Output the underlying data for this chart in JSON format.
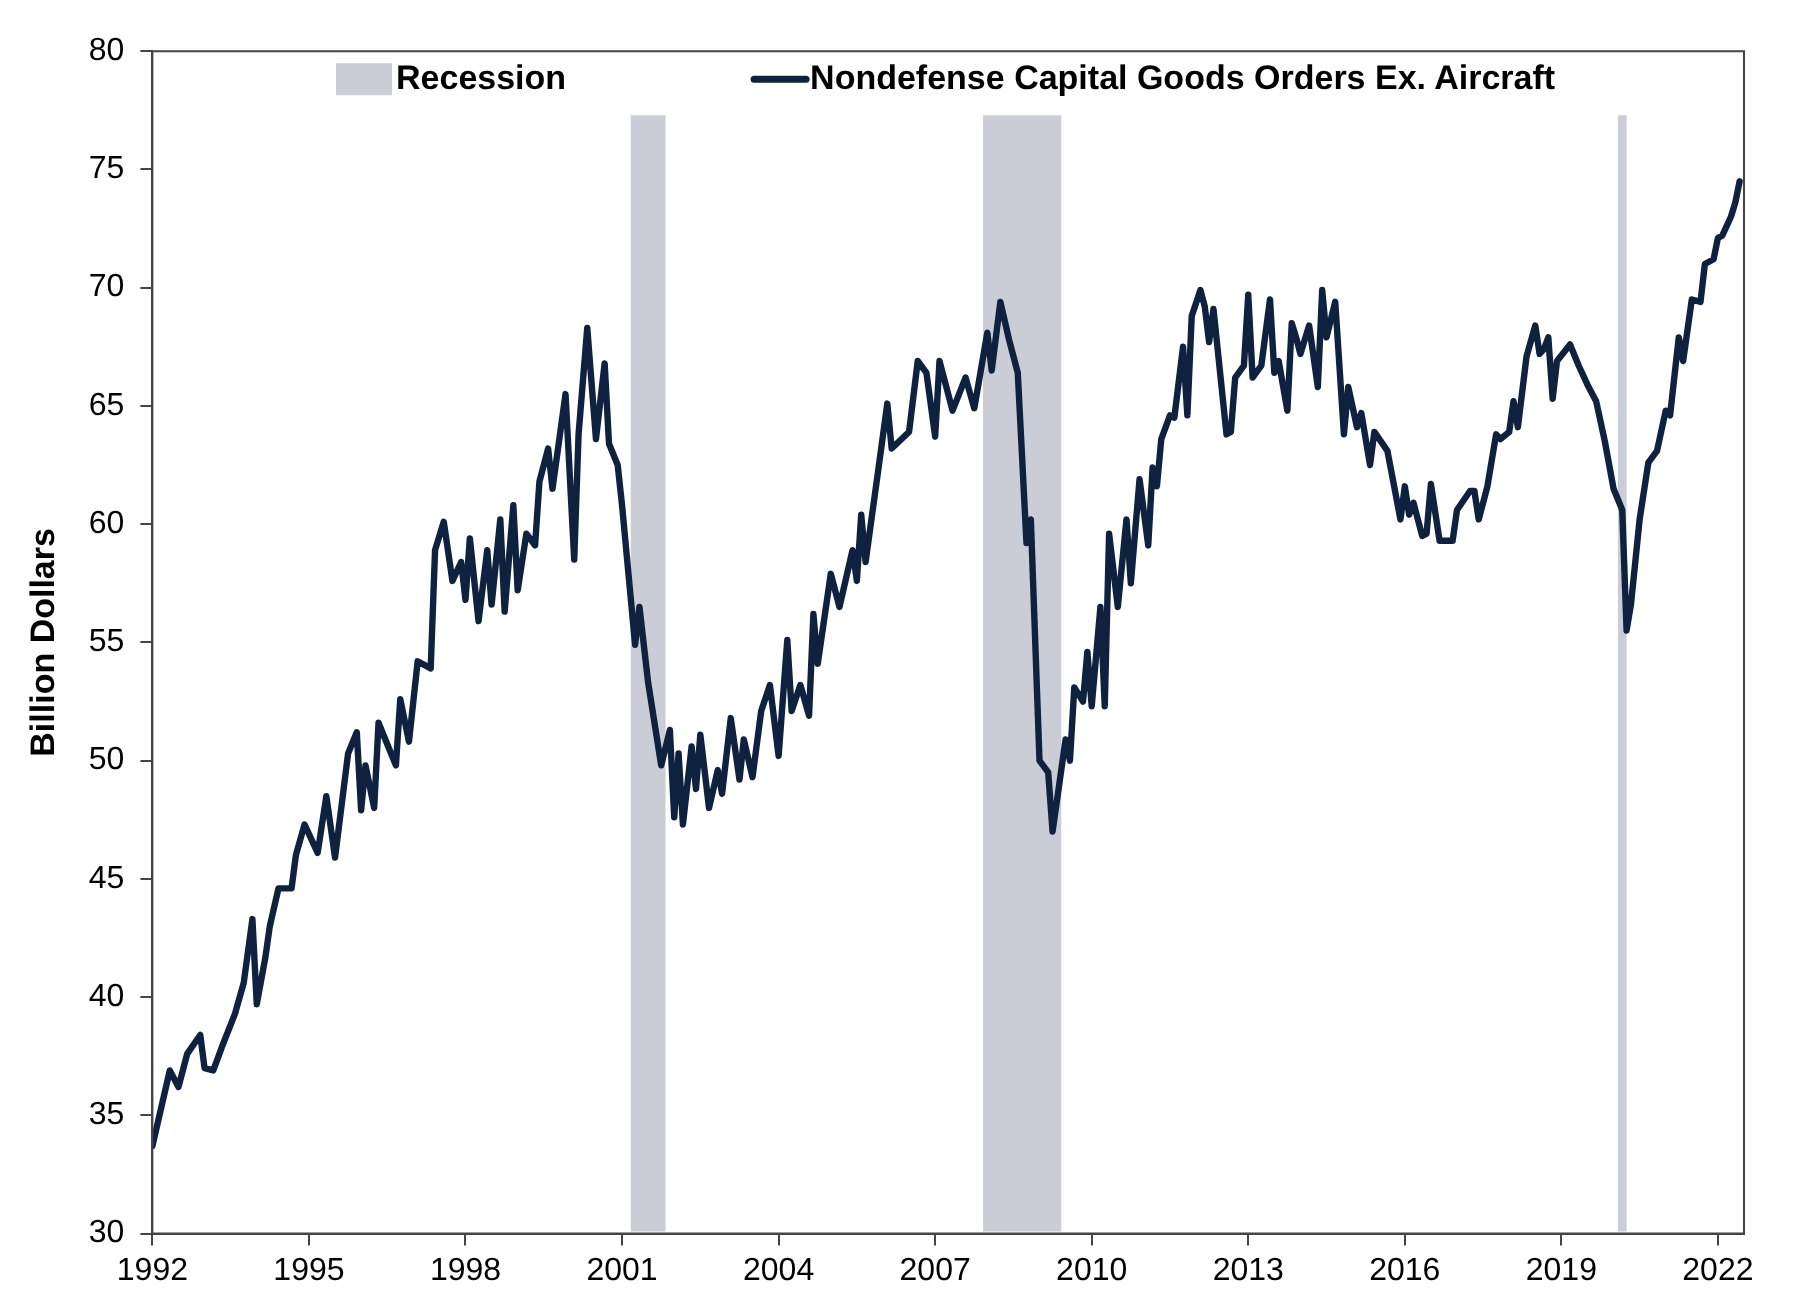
{
  "chart_data": {
    "type": "line",
    "ylabel": "Billion Dollars",
    "xlim": [
      "1992-01",
      "2022-07"
    ],
    "xticks": [
      "1992",
      "1995",
      "1998",
      "2001",
      "2004",
      "2007",
      "2010",
      "2013",
      "2016",
      "2019",
      "2022"
    ],
    "ylim": [
      30,
      80
    ],
    "yticks": [
      30,
      35,
      40,
      45,
      50,
      55,
      60,
      65,
      70,
      75,
      80
    ],
    "grid": false,
    "legend": "top",
    "marker": "none",
    "line_style": "solid",
    "bands": [
      {
        "axis": "x",
        "from": "2001-03",
        "to": "2001-11",
        "label": "Recession",
        "color": "#cbcdd6"
      },
      {
        "axis": "x",
        "from": "2007-12",
        "to": "2009-06",
        "color": "#cbcdd6"
      },
      {
        "axis": "x",
        "from": "2020-02",
        "to": "2020-04",
        "color": "#cbcdd6"
      }
    ],
    "series": [
      {
        "name": "Nondefense Capital Goods Orders Ex. Aircraft",
        "color": "#0e2240",
        "x": [
          "1992-01",
          "1992-05",
          "1992-07",
          "1992-09",
          "1992-12",
          "1993-01",
          "1993-03",
          "1993-05",
          "1993-08",
          "1993-10",
          "1993-12",
          "1994-01",
          "1994-03",
          "1994-04",
          "1994-06",
          "1994-09",
          "1994-10",
          "1994-12",
          "1995-03",
          "1995-05",
          "1995-07",
          "1995-10",
          "1995-12",
          "1996-01",
          "1996-02",
          "1996-04",
          "1996-05",
          "1996-09",
          "1996-10",
          "1996-12",
          "1997-02",
          "1997-05",
          "1997-06",
          "1997-08",
          "1997-10",
          "1997-12",
          "1998-01",
          "1998-02",
          "1998-04",
          "1998-06",
          "1998-07",
          "1998-09",
          "1998-10",
          "1998-12",
          "1999-01",
          "1999-03",
          "1999-05",
          "1999-06",
          "1999-08",
          "1999-09",
          "1999-12",
          "2000-02",
          "2000-03",
          "2000-05",
          "2000-07",
          "2000-09",
          "2000-10",
          "2000-12",
          "2001-01",
          "2001-04",
          "2001-05",
          "2001-07",
          "2001-10",
          "2001-12",
          "2002-01",
          "2002-02",
          "2002-03",
          "2002-05",
          "2002-06",
          "2002-07",
          "2002-09",
          "2002-11",
          "2002-12",
          "2003-02",
          "2003-04",
          "2003-05",
          "2003-07",
          "2003-09",
          "2003-11",
          "2004-01",
          "2004-03",
          "2004-04",
          "2004-06",
          "2004-08",
          "2004-09",
          "2004-10",
          "2005-01",
          "2005-03",
          "2005-04",
          "2005-06",
          "2005-07",
          "2005-08",
          "2005-09",
          "2005-12",
          "2006-02",
          "2006-03",
          "2006-07",
          "2006-09",
          "2006-11",
          "2007-01",
          "2007-02",
          "2007-05",
          "2007-08",
          "2007-10",
          "2008-01",
          "2008-02",
          "2008-04",
          "2008-06",
          "2008-08",
          "2008-10",
          "2008-11",
          "2009-01",
          "2009-03",
          "2009-04",
          "2009-07",
          "2009-08",
          "2009-09",
          "2009-11",
          "2009-12",
          "2010-01",
          "2010-03",
          "2010-04",
          "2010-05",
          "2010-07",
          "2010-09",
          "2010-10",
          "2010-12",
          "2011-02",
          "2011-03",
          "2011-04",
          "2011-05",
          "2011-07",
          "2011-08",
          "2011-10",
          "2011-11",
          "2011-12",
          "2012-02",
          "2012-03",
          "2012-04",
          "2012-05",
          "2012-08",
          "2012-09",
          "2012-10",
          "2012-12",
          "2013-01",
          "2013-02",
          "2013-04",
          "2013-06",
          "2013-07",
          "2013-08",
          "2013-10",
          "2013-11",
          "2013-12",
          "2014-01",
          "2014-03",
          "2014-05",
          "2014-06",
          "2014-07",
          "2014-09",
          "2014-11",
          "2014-12",
          "2015-02",
          "2015-03",
          "2015-05",
          "2015-06",
          "2015-09",
          "2015-12",
          "2016-01",
          "2016-02",
          "2016-03",
          "2016-05",
          "2016-06",
          "2016-07",
          "2016-09",
          "2016-12",
          "2017-01",
          "2017-04",
          "2017-05",
          "2017-06",
          "2017-08",
          "2017-10",
          "2017-11",
          "2018-01",
          "2018-02",
          "2018-03",
          "2018-05",
          "2018-07",
          "2018-08",
          "2018-09",
          "2018-10",
          "2018-11",
          "2018-12",
          "2019-03",
          "2019-05",
          "2019-07",
          "2019-09",
          "2019-11",
          "2020-01",
          "2020-03",
          "2020-04",
          "2020-05",
          "2020-07",
          "2020-09",
          "2020-11",
          "2021-01",
          "2021-02",
          "2021-04",
          "2021-05",
          "2021-07",
          "2021-09",
          "2021-10",
          "2021-12",
          "2022-01",
          "2022-02",
          "2022-04",
          "2022-05",
          "2022-06"
        ],
        "values": [
          33.7,
          36.9,
          36.2,
          37.6,
          38.4,
          37.0,
          36.9,
          37.9,
          39.3,
          40.6,
          43.3,
          39.7,
          41.7,
          43.0,
          44.6,
          44.6,
          46.0,
          47.3,
          46.1,
          48.5,
          45.9,
          50.3,
          51.2,
          47.9,
          49.8,
          48.0,
          51.6,
          49.8,
          52.6,
          50.8,
          54.2,
          53.9,
          58.9,
          60.1,
          57.6,
          58.4,
          56.8,
          59.4,
          55.9,
          58.9,
          56.6,
          60.2,
          56.3,
          60.8,
          57.2,
          59.6,
          59.1,
          61.8,
          63.2,
          61.5,
          65.5,
          58.5,
          63.8,
          68.3,
          63.6,
          66.8,
          63.4,
          62.5,
          60.8,
          54.9,
          56.5,
          53.3,
          49.8,
          51.3,
          47.6,
          50.3,
          47.3,
          50.6,
          48.8,
          51.1,
          48.0,
          49.6,
          48.6,
          51.8,
          49.2,
          50.9,
          49.3,
          52.1,
          53.2,
          50.2,
          55.1,
          52.1,
          53.2,
          51.9,
          56.2,
          54.1,
          57.9,
          56.5,
          57.3,
          58.9,
          57.6,
          60.4,
          58.4,
          62.4,
          65.1,
          63.2,
          63.9,
          66.9,
          66.4,
          63.7,
          66.9,
          64.8,
          66.2,
          64.9,
          68.1,
          66.5,
          69.4,
          67.8,
          66.4,
          59.2,
          60.2,
          50.0,
          49.5,
          47.0,
          50.9,
          50.0,
          53.1,
          52.5,
          54.6,
          52.3,
          56.5,
          52.3,
          59.6,
          56.5,
          60.2,
          57.5,
          61.9,
          59.1,
          62.4,
          61.6,
          63.6,
          64.6,
          64.5,
          67.5,
          64.6,
          68.8,
          69.9,
          69.2,
          67.7,
          69.1,
          63.8,
          63.9,
          66.2,
          66.7,
          69.7,
          66.2,
          66.7,
          69.5,
          66.4,
          66.9,
          64.8,
          68.5,
          67.9,
          67.2,
          68.4,
          65.8,
          69.9,
          67.9,
          69.4,
          63.8,
          65.8,
          64.1,
          64.7,
          62.5,
          63.9,
          63.1,
          60.2,
          61.6,
          60.4,
          60.9,
          59.5,
          59.6,
          61.7,
          59.3,
          59.3,
          60.6,
          61.4,
          61.4,
          60.2,
          61.6,
          63.8,
          63.6,
          63.9,
          65.2,
          64.1,
          67.1,
          68.4,
          67.2,
          67.4,
          67.9,
          65.3,
          66.9,
          67.6,
          66.7,
          65.9,
          65.2,
          63.5,
          61.5,
          60.6,
          55.5,
          56.6,
          60.2,
          62.6,
          63.1,
          64.8,
          64.6,
          67.9,
          66.9,
          69.5,
          69.4,
          71.0,
          71.2,
          72.1,
          72.2,
          73.0,
          73.6,
          74.5
        ]
      }
    ]
  }
}
